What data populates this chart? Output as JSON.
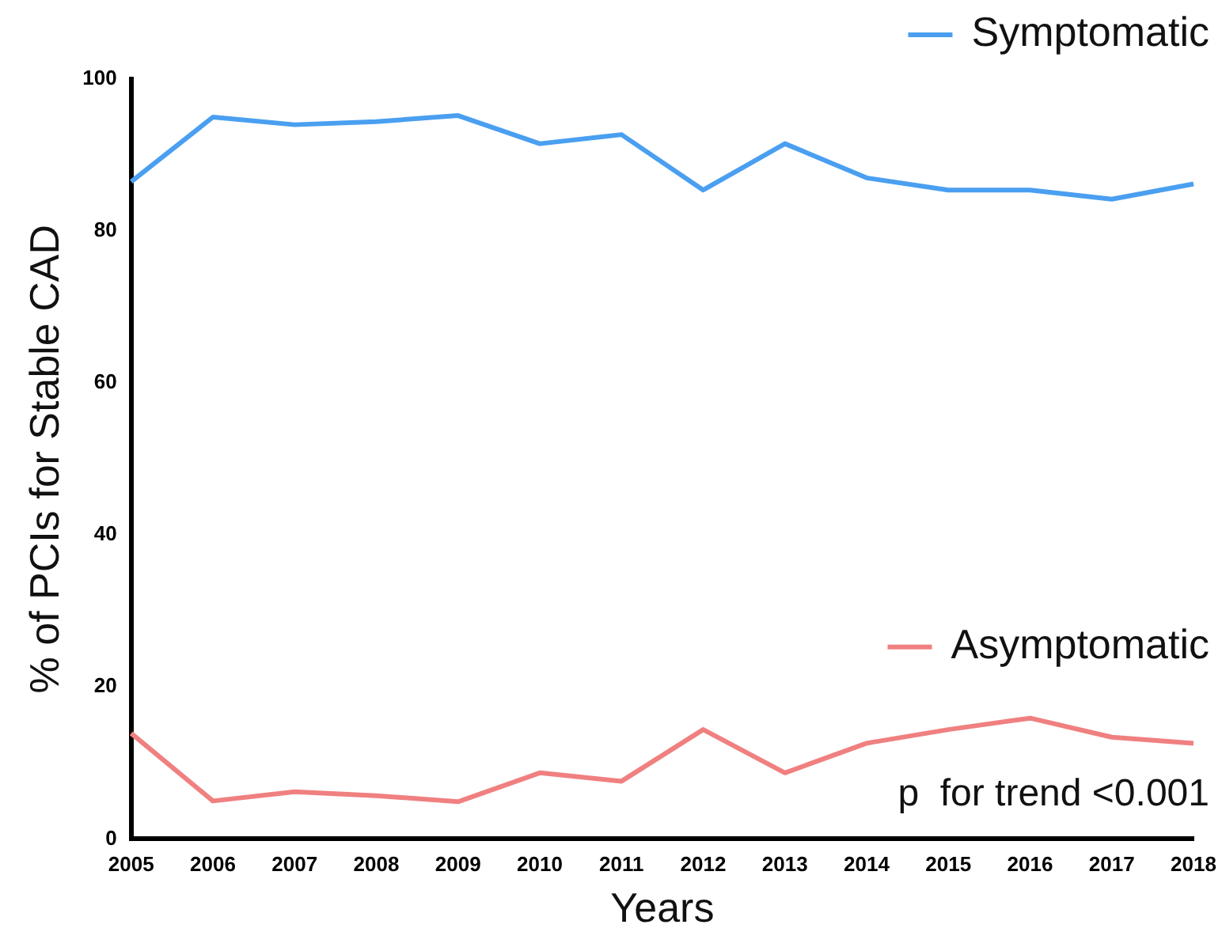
{
  "chart_data": {
    "type": "line",
    "xlabel": "Years",
    "ylabel": "% of PCIs for Stable CAD",
    "categories": [
      "2005",
      "2006",
      "2007",
      "2008",
      "2009",
      "2010",
      "2011",
      "2012",
      "2013",
      "2014",
      "2015",
      "2016",
      "2017",
      "2018"
    ],
    "series": [
      {
        "name": "Symptomatic",
        "color": "#4a9ff0",
        "values": [
          86.5,
          95,
          94,
          94.4,
          95.2,
          91.5,
          92.7,
          85.4,
          91.5,
          87,
          85.4,
          85.4,
          84.2,
          86.2
        ]
      },
      {
        "name": "Asymptomatic",
        "color": "#f08080",
        "values": [
          13.9,
          5.0,
          6.2,
          5.7,
          4.9,
          8.7,
          7.6,
          14.4,
          8.7,
          12.6,
          14.4,
          15.9,
          13.4,
          12.6
        ]
      }
    ],
    "ylim": [
      0,
      100
    ],
    "yticks": [
      0,
      20,
      40,
      60,
      80,
      100
    ],
    "grid": false,
    "legend": "right",
    "marker": "none",
    "line_style": "solid",
    "annotations": [
      "p  for trend <0.001"
    ]
  }
}
